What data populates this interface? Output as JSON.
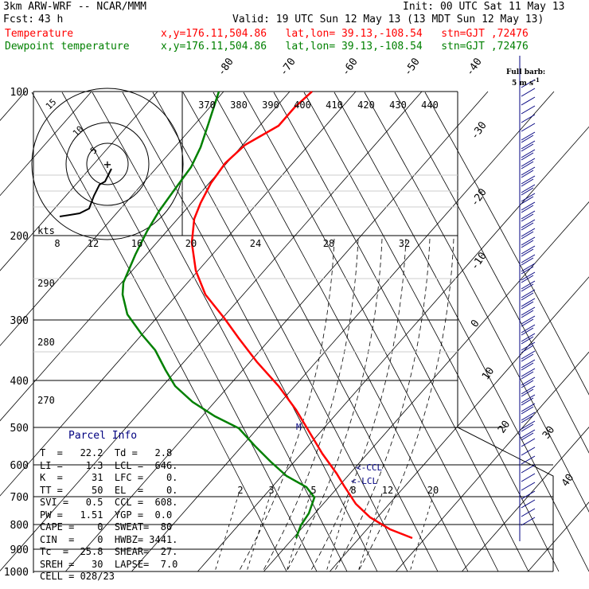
{
  "header": {
    "model": "3km ARW-WRF -- NCAR/MMM",
    "init": "Init: 00 UTC Sat 11 May 13",
    "fcst_label": "Fcst:",
    "fcst_value": "43 h",
    "valid": "Valid: 19 UTC Sun 12 May 13 (13 MDT Sun 12 May 13)",
    "temp_label": "Temperature",
    "temp_info": "x,y=176.11,504.86   lat,lon= 39.13,-108.54   stn=GJT ,72476",
    "dew_label": "Dewpoint temperature",
    "dew_info": "x,y=176.11,504.86   lat,lon= 39.13,-108.54   stn=GJT ,72476",
    "barb_title": "Full barb:",
    "barb_unit": "5 m s",
    "barb_sup": "-1"
  },
  "colors": {
    "temperature": "#ff0000",
    "dewpoint": "#008000",
    "barbs": "#000080",
    "text_red": "#ff0000",
    "text_green": "#008000",
    "panel_text": "#000080"
  },
  "chart_data": {
    "type": "line",
    "title": "Skew-T log-P diagram",
    "pressure_levels": [
      "100",
      "200",
      "300",
      "400",
      "500",
      "600",
      "700",
      "800",
      "900",
      "1000"
    ],
    "temp_axis_labels": [
      "-80",
      "-70",
      "-60",
      "-50",
      "-40",
      "-30",
      "-20",
      "-10",
      "0",
      "10",
      "20",
      "30",
      "40"
    ],
    "theta_labels": [
      "370",
      "380",
      "390",
      "400",
      "410",
      "420",
      "430",
      "440"
    ],
    "theta_low_labels": [
      "290",
      "280",
      "270"
    ],
    "speed_labels": [
      "kts",
      "8",
      "12",
      "16",
      "20",
      "24",
      "28",
      "32"
    ],
    "mixing_ratio_labels": [
      "2",
      "3",
      "5",
      "8",
      "12",
      "20"
    ],
    "hodograph_rings": [
      "5",
      "10",
      "15"
    ],
    "hodograph_plus": "+",
    "series": [
      {
        "name": "Temperature",
        "points": [
          [
            100,
            -52
          ],
          [
            150,
            -58
          ],
          [
            200,
            -57
          ],
          [
            250,
            -52
          ],
          [
            300,
            -44
          ],
          [
            400,
            -28
          ],
          [
            500,
            -14
          ],
          [
            600,
            -4
          ],
          [
            700,
            4
          ],
          [
            800,
            16
          ],
          [
            850,
            23
          ]
        ]
      },
      {
        "name": "Dewpoint temperature",
        "points": [
          [
            100,
            -82
          ],
          [
            150,
            -76
          ],
          [
            200,
            -71
          ],
          [
            250,
            -70
          ],
          [
            300,
            -62
          ],
          [
            400,
            -43
          ],
          [
            500,
            -19
          ],
          [
            600,
            -5
          ],
          [
            700,
            1
          ],
          [
            750,
            -3
          ],
          [
            850,
            -2
          ]
        ]
      }
    ],
    "ccl_label": "<-CCL",
    "lcl_label": "<-LCL",
    "m_label": "M"
  },
  "parcel_info": {
    "title": "Parcel Info",
    "rows": [
      "T  =   22.2  Td =   2.8",
      "LI =    1.3  LCL =  646.",
      "K  =     31  LFC =    0.",
      "TT =     50  EL  =    0.",
      "SVI =   0.5  CCL =  608.",
      "PW =   1.51  YGP =  0.0",
      "CAPE =    0  SWEAT=  80",
      "CIN  =    0  HWBZ= 3441.",
      "Tc  =  25.8  SHEAR=  27.",
      "SREH =   30  LAPSE=  7.0",
      "CELL = 028/23"
    ]
  }
}
